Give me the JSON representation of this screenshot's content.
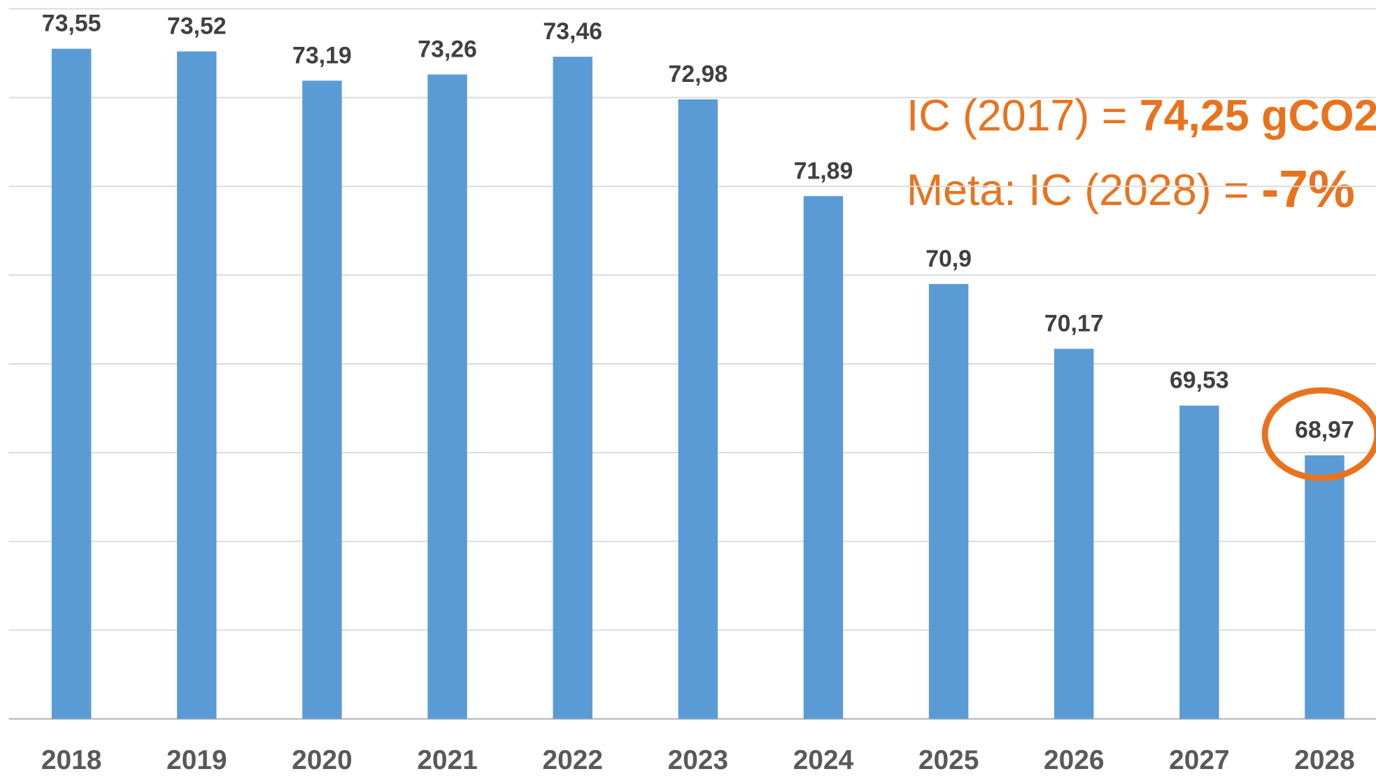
{
  "chart_data": {
    "type": "bar",
    "categories": [
      "2018",
      "2019",
      "2020",
      "2021",
      "2022",
      "2023",
      "2024",
      "2025",
      "2026",
      "2027",
      "2028"
    ],
    "values": [
      73.55,
      73.52,
      73.19,
      73.26,
      73.46,
      72.98,
      71.89,
      70.9,
      70.17,
      69.53,
      68.97
    ],
    "value_labels": [
      "73,55",
      "73,52",
      "73,19",
      "73,26",
      "73,46",
      "72,98",
      "71,89",
      "70,9",
      "70,17",
      "69,53",
      "68,97"
    ],
    "color": "#5b9bd5",
    "ylim": [
      66,
      74
    ],
    "yticks": [
      66,
      67,
      68,
      69,
      70,
      71,
      72,
      73,
      74
    ],
    "grid": true,
    "annotations": [
      {
        "text": "IC (2017) = ",
        "emphasis": "74,25 gCO2"
      },
      {
        "text": "Meta: IC (2028) = ",
        "emphasis": "-7%"
      }
    ]
  }
}
